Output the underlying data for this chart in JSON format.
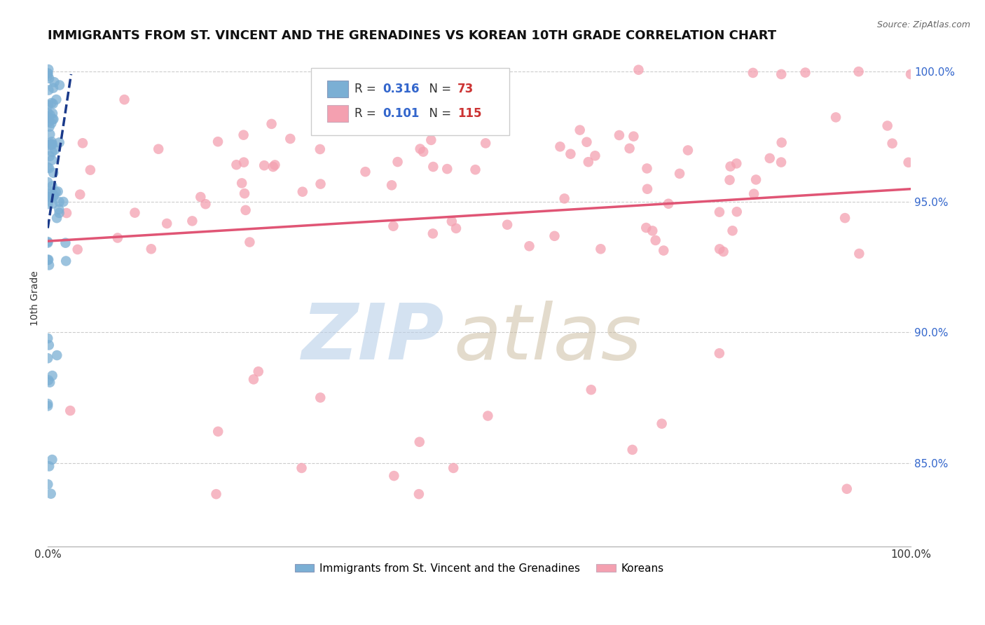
{
  "title": "IMMIGRANTS FROM ST. VINCENT AND THE GRENADINES VS KOREAN 10TH GRADE CORRELATION CHART",
  "source": "Source: ZipAtlas.com",
  "ylabel": "10th Grade",
  "blue_label": "Immigrants from St. Vincent and the Grenadines",
  "pink_label": "Koreans",
  "blue_R": 0.316,
  "blue_N": 73,
  "pink_R": 0.101,
  "pink_N": 115,
  "xlim": [
    0.0,
    1.0
  ],
  "ylim": [
    0.818,
    1.008
  ],
  "right_yticks": [
    0.85,
    0.9,
    0.95,
    1.0
  ],
  "right_yticklabels": [
    "85.0%",
    "90.0%",
    "95.0%",
    "100.0%"
  ],
  "xticklabels": [
    "0.0%",
    "100.0%"
  ],
  "xticks": [
    0.0,
    1.0
  ],
  "grid_color": "#cccccc",
  "blue_color": "#7bafd4",
  "pink_color": "#f4a0b0",
  "blue_line_color": "#1a3a8a",
  "pink_line_color": "#e05575",
  "watermark_zip_color": "#b8cfe8",
  "watermark_atlas_color": "#c8b89a",
  "title_fontsize": 13,
  "axis_label_fontsize": 10,
  "tick_fontsize": 11,
  "legend_R_color": "#3366cc",
  "legend_N_color": "#cc3333",
  "pink_trend_start_y": 0.935,
  "pink_trend_end_y": 0.955,
  "blue_trend_x0": 0.0,
  "blue_trend_y0": 0.94,
  "blue_trend_x1": 0.027,
  "blue_trend_y1": 0.999
}
